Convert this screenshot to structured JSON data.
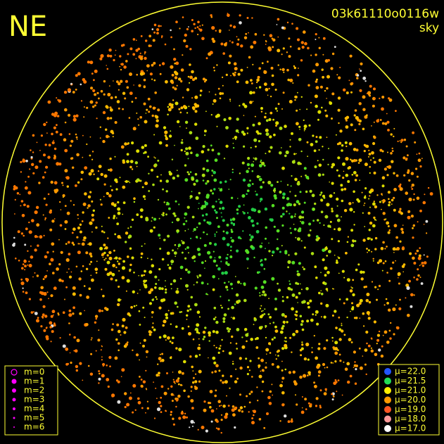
{
  "header": {
    "corner": "NE",
    "id": "03k61110o0116w",
    "label": "sky"
  },
  "magnitude_legend": [
    "m=0",
    "m=1",
    "m=2",
    "m=3",
    "m=4",
    "m=5",
    "m=6"
  ],
  "brightness_legend": [
    "μ=22.0",
    "μ=21.5",
    "μ=21.0",
    "μ=20.0",
    "μ=19.0",
    "μ=18.0",
    "μ=17.0"
  ]
}
